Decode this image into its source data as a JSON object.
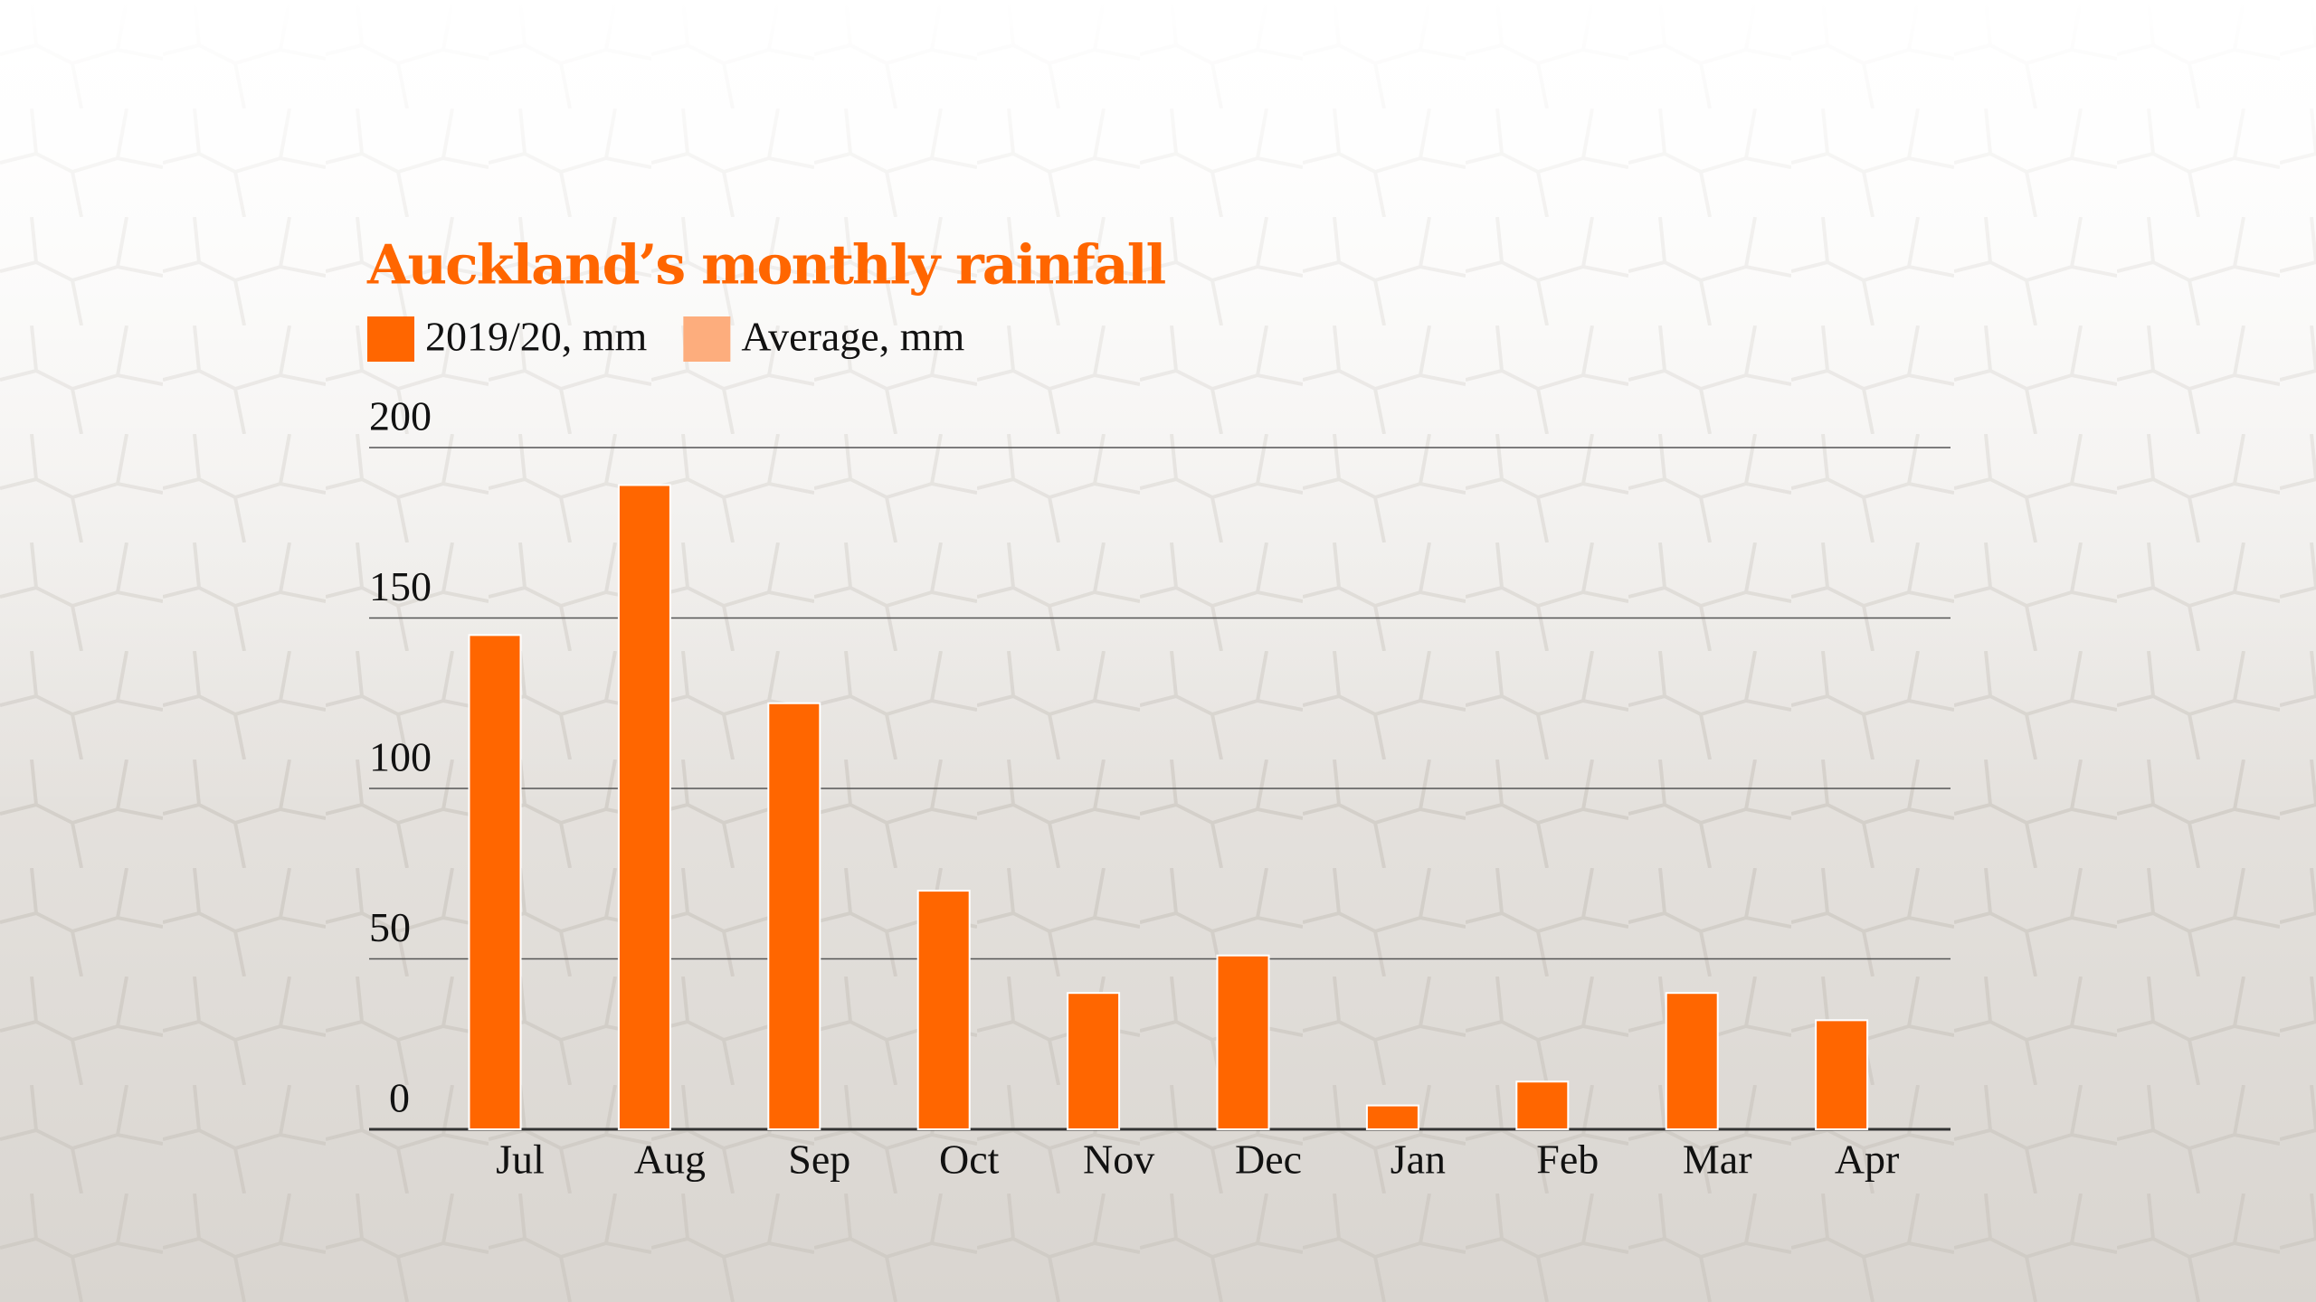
{
  "chart_data": {
    "type": "bar",
    "title": "Auckland’s monthly rainfall",
    "categories": [
      "Jul",
      "Aug",
      "Sep",
      "Oct",
      "Nov",
      "Dec",
      "Jan",
      "Feb",
      "Mar",
      "Apr"
    ],
    "series": [
      {
        "name": "2019/20, mm",
        "color": "#ff6600",
        "values": [
          145,
          189,
          125,
          70,
          40,
          51,
          7,
          14,
          40,
          32
        ]
      },
      {
        "name": "Average, mm",
        "color": "#fdad7d",
        "values": [
          null,
          null,
          null,
          null,
          null,
          null,
          null,
          null,
          null,
          null
        ]
      }
    ],
    "ylim": [
      0,
      200
    ],
    "yticks": [
      0,
      50,
      100,
      150,
      200
    ],
    "grid": true
  }
}
